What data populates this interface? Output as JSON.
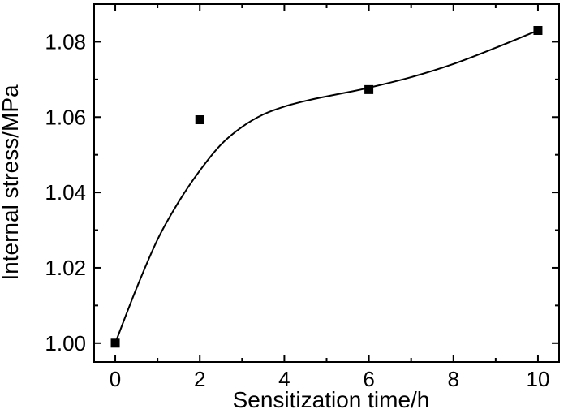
{
  "chart_data": {
    "type": "scatter",
    "xlabel": "Sensitization time/h",
    "ylabel": "Internal stress/MPa",
    "xlim": [
      -0.5,
      10.5
    ],
    "ylim": [
      0.995,
      1.09
    ],
    "x_ticks": [
      0,
      2,
      4,
      6,
      8,
      10
    ],
    "x_tick_labels": [
      "0",
      "2",
      "4",
      "6",
      "8",
      "10"
    ],
    "y_ticks": [
      1.0,
      1.02,
      1.04,
      1.06,
      1.08
    ],
    "y_tick_labels": [
      "1.00",
      "1.02",
      "1.04",
      "1.06",
      "1.08"
    ],
    "grid": false,
    "series": [
      {
        "marker": "square",
        "x": [
          0,
          2,
          6,
          10
        ],
        "y": [
          1.0,
          1.0593,
          1.0673,
          1.083
        ]
      }
    ],
    "fit_curve": {
      "style": "solid",
      "x": [
        0,
        0.5,
        1,
        1.5,
        2,
        2.5,
        3,
        3.5,
        4,
        4.5,
        5,
        5.5,
        6,
        7,
        8,
        9,
        10
      ],
      "y": [
        1.0,
        1.0145,
        1.0275,
        1.0375,
        1.0458,
        1.0527,
        1.0574,
        1.0607,
        1.0628,
        1.0643,
        1.0655,
        1.0666,
        1.0678,
        1.0706,
        1.0741,
        1.0784,
        1.083
      ]
    }
  }
}
